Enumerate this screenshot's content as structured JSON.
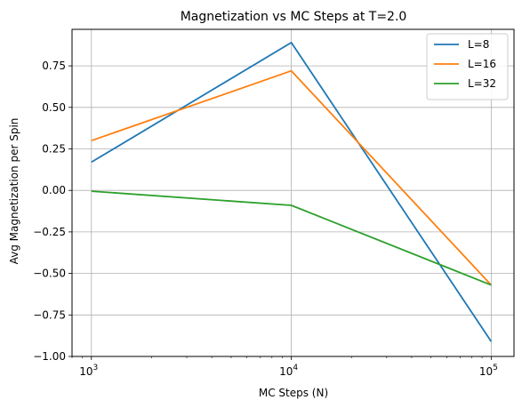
{
  "chart_data": {
    "type": "line",
    "title": "Magnetization vs MC Steps at T=2.0",
    "xlabel": "MC Steps (N)",
    "ylabel": "Avg Magnetization per Spin",
    "xscale": "log",
    "xlim": [
      800,
      130000
    ],
    "ylim": [
      -1.0,
      0.97
    ],
    "x": [
      1000,
      10000,
      100000
    ],
    "x_tick_labels": [
      {
        "value": 1000,
        "base": "10",
        "exp": "3"
      },
      {
        "value": 10000,
        "base": "10",
        "exp": "4"
      },
      {
        "value": 100000,
        "base": "10",
        "exp": "5"
      }
    ],
    "y_ticks": [
      {
        "value": 0.75,
        "label": "0.75"
      },
      {
        "value": 0.5,
        "label": "0.50"
      },
      {
        "value": 0.25,
        "label": "0.25"
      },
      {
        "value": 0.0,
        "label": "0.00"
      },
      {
        "value": -0.25,
        "label": "−0.25"
      },
      {
        "value": -0.5,
        "label": "−0.50"
      },
      {
        "value": -0.75,
        "label": "−0.75"
      },
      {
        "value": -1.0,
        "label": "−1.00"
      }
    ],
    "grid": true,
    "legend_position": "top-right",
    "series": [
      {
        "name": "L=8",
        "color": "#1f77b4",
        "values": [
          0.17,
          0.89,
          -0.91
        ]
      },
      {
        "name": "L=16",
        "color": "#ff7f0e",
        "values": [
          0.3,
          0.72,
          -0.57
        ]
      },
      {
        "name": "L=32",
        "color": "#2ca02c",
        "values": [
          -0.005,
          -0.09,
          -0.57
        ]
      }
    ]
  }
}
